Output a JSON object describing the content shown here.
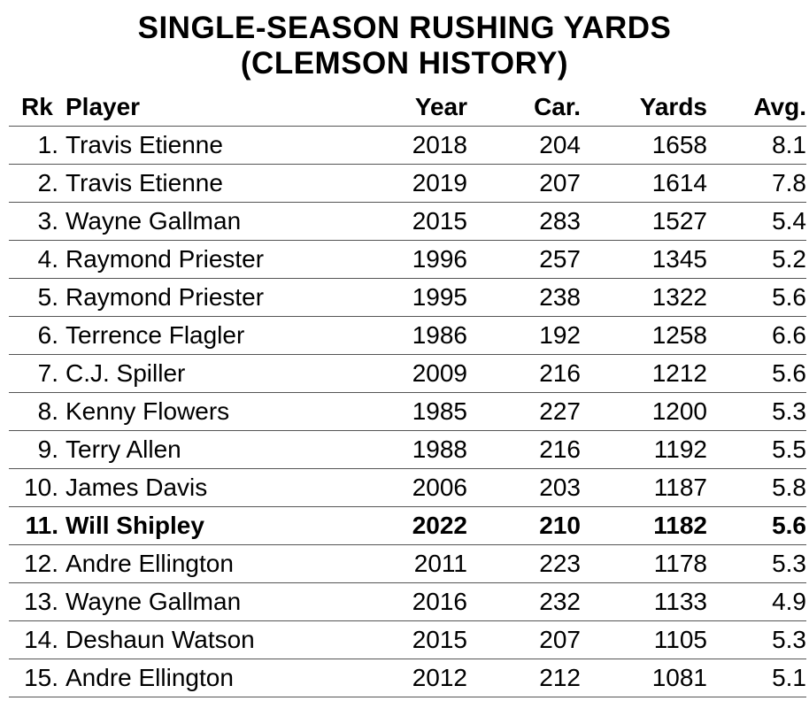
{
  "chart_data": {
    "type": "table",
    "title_lines": [
      "SINGLE-SEASON RUSHING YARDS",
      "(CLEMSON HISTORY)"
    ],
    "columns": [
      "Rk",
      "Player",
      "Year",
      "Car.",
      "Yards",
      "Avg."
    ],
    "highlight_rank": 11,
    "rows": [
      {
        "rank": "1.",
        "player": "Travis Etienne",
        "year": "2018",
        "car": "204",
        "yards": "1658",
        "avg": "8.1"
      },
      {
        "rank": "2.",
        "player": "Travis Etienne",
        "year": "2019",
        "car": "207",
        "yards": "1614",
        "avg": "7.8"
      },
      {
        "rank": "3.",
        "player": "Wayne Gallman",
        "year": "2015",
        "car": "283",
        "yards": "1527",
        "avg": "5.4"
      },
      {
        "rank": "4.",
        "player": "Raymond Priester",
        "year": "1996",
        "car": "257",
        "yards": "1345",
        "avg": "5.2"
      },
      {
        "rank": "5.",
        "player": "Raymond Priester",
        "year": "1995",
        "car": "238",
        "yards": "1322",
        "avg": "5.6"
      },
      {
        "rank": "6.",
        "player": "Terrence Flagler",
        "year": "1986",
        "car": "192",
        "yards": "1258",
        "avg": "6.6"
      },
      {
        "rank": "7.",
        "player": "C.J. Spiller",
        "year": "2009",
        "car": "216",
        "yards": "1212",
        "avg": "5.6"
      },
      {
        "rank": "8.",
        "player": "Kenny Flowers",
        "year": "1985",
        "car": "227",
        "yards": "1200",
        "avg": "5.3"
      },
      {
        "rank": "9.",
        "player": "Terry Allen",
        "year": "1988",
        "car": "216",
        "yards": "1192",
        "avg": "5.5"
      },
      {
        "rank": "10.",
        "player": "James Davis",
        "year": "2006",
        "car": "203",
        "yards": "1187",
        "avg": "5.8"
      },
      {
        "rank": "11.",
        "player": "Will Shipley",
        "year": "2022",
        "car": "210",
        "yards": "1182",
        "avg": "5.6"
      },
      {
        "rank": "12.",
        "player": "Andre Ellington",
        "year": "2011",
        "car": "223",
        "yards": "1178",
        "avg": "5.3"
      },
      {
        "rank": "13.",
        "player": "Wayne Gallman",
        "year": "2016",
        "car": "232",
        "yards": "1133",
        "avg": "4.9"
      },
      {
        "rank": "14.",
        "player": "Deshaun Watson",
        "year": "2015",
        "car": "207",
        "yards": "1105",
        "avg": "5.3"
      },
      {
        "rank": "15.",
        "player": "Andre Ellington",
        "year": "2012",
        "car": "212",
        "yards": "1081",
        "avg": "5.1"
      }
    ]
  }
}
